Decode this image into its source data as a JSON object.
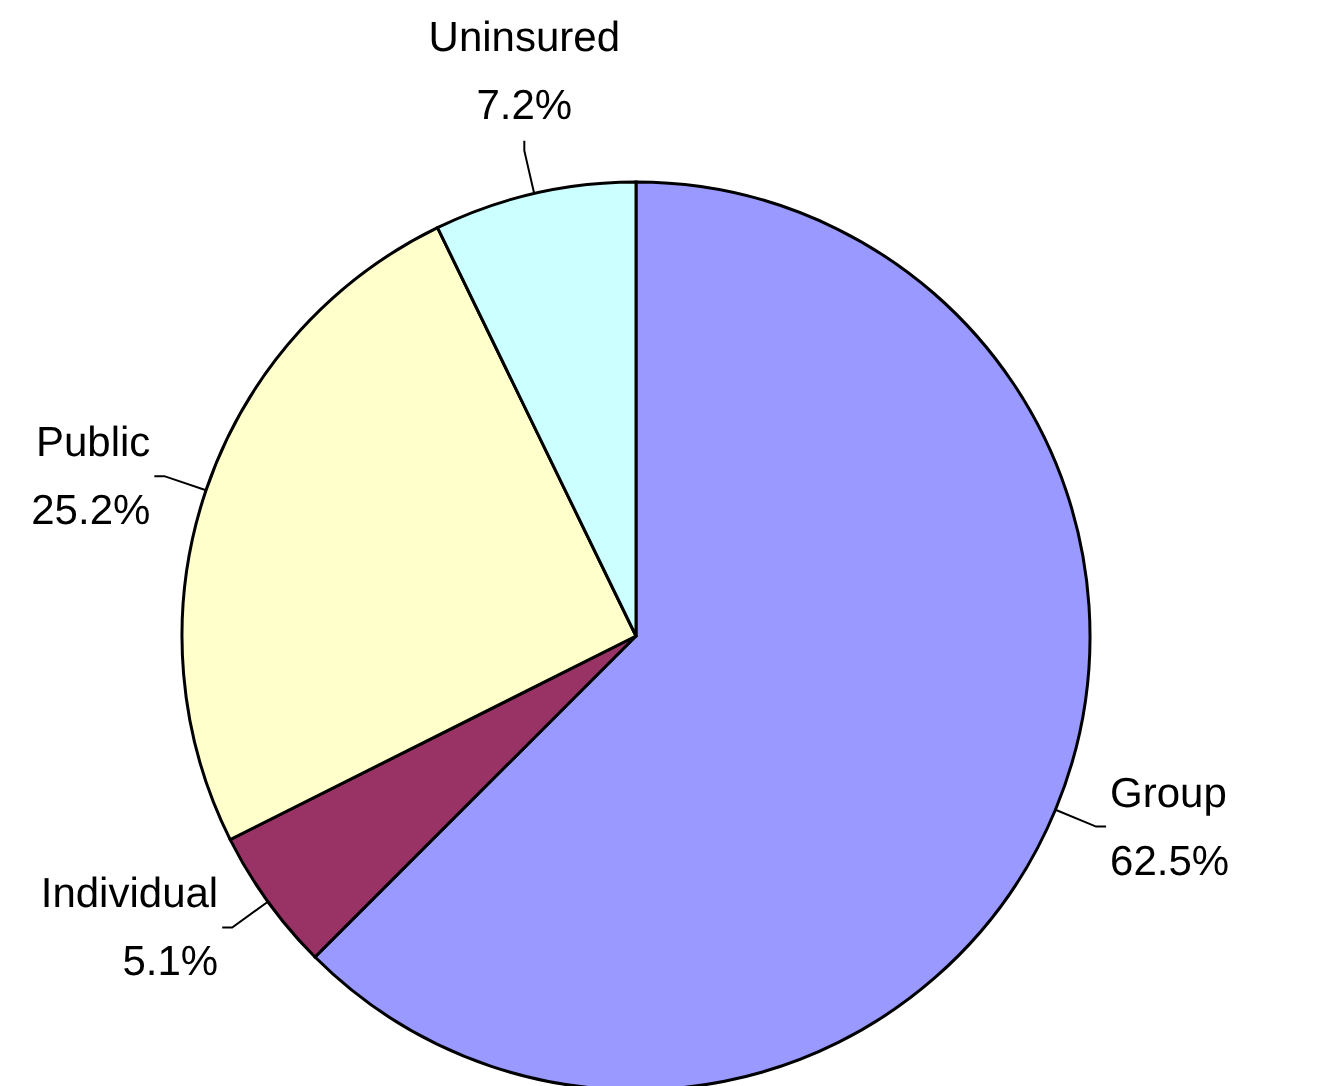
{
  "chart_data": {
    "type": "pie",
    "categories": [
      "Group",
      "Individual",
      "Public",
      "Uninsured"
    ],
    "values": [
      62.5,
      5.1,
      25.2,
      7.2
    ],
    "colors": [
      "#9999ff",
      "#993366",
      "#ffffcc",
      "#ccffff"
    ],
    "value_labels": [
      "62.5%",
      "5.1%",
      "25.2%",
      "7.2%"
    ]
  }
}
